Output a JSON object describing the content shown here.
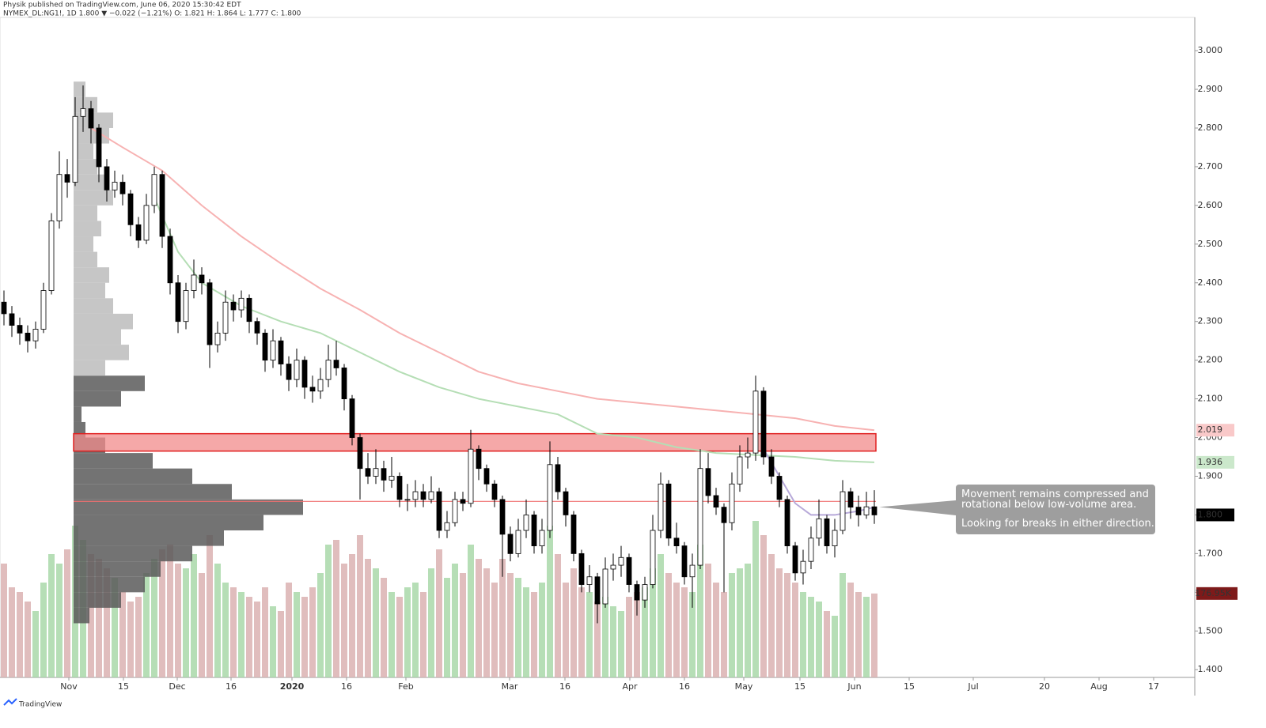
{
  "header": {
    "publisher": "Physik published on TradingView.com, June 06, 2020 15:30:42 EDT",
    "symbol_line": "NYMEX_DL:NG1!, 1D 1.800 ▼ −0.022 (−1.21%) O: 1.821 H: 1.864 L: 1.777 C: 1.800"
  },
  "footer": "TradingView",
  "chart_data": {
    "type": "candlestick",
    "up_color": "#ffffff",
    "down_color": "#000000",
    "outline_color": "#000000",
    "volume_up_color": "#a9d8a9",
    "volume_down_color": "#dbb1b1",
    "ylim": [
      1.38,
      3.086
    ],
    "yticks": [
      {
        "value": 1.4,
        "label": "1.400"
      },
      {
        "value": 1.5,
        "label": "1.500"
      },
      {
        "value": 1.6,
        "label": "1.600"
      },
      {
        "value": 1.7,
        "label": "1.700"
      },
      {
        "value": 1.8,
        "label": "1.800"
      },
      {
        "value": 1.9,
        "label": "1.900"
      },
      {
        "value": 2.0,
        "label": "2.000"
      },
      {
        "value": 2.1,
        "label": "2.100"
      },
      {
        "value": 2.2,
        "label": "2.200"
      },
      {
        "value": 2.3,
        "label": "2.300"
      },
      {
        "value": 2.4,
        "label": "2.400"
      },
      {
        "value": 2.5,
        "label": "2.500"
      },
      {
        "value": 2.6,
        "label": "2.600"
      },
      {
        "value": 2.7,
        "label": "2.700"
      },
      {
        "value": 2.8,
        "label": "2.800"
      },
      {
        "value": 2.9,
        "label": "2.900"
      },
      {
        "value": 3.0,
        "label": "3.000"
      }
    ],
    "xlim": [
      -0.5,
      150.5
    ],
    "xticks": [
      {
        "value": 8.2,
        "label": "Nov"
      },
      {
        "value": 15.1,
        "label": "15"
      },
      {
        "value": 21.9,
        "label": "Dec"
      },
      {
        "value": 28.7,
        "label": "16"
      },
      {
        "value": 36.4,
        "label": "2020"
      },
      {
        "value": 43.3,
        "label": "16"
      },
      {
        "value": 50.8,
        "label": "Feb"
      },
      {
        "value": 63.9,
        "label": "Mar"
      },
      {
        "value": 70.9,
        "label": "16"
      },
      {
        "value": 79.1,
        "label": "Apr"
      },
      {
        "value": 86.0,
        "label": "16"
      },
      {
        "value": 93.5,
        "label": "May"
      },
      {
        "value": 100.6,
        "label": "15"
      },
      {
        "value": 107.5,
        "label": "Jun"
      },
      {
        "value": 114.4,
        "label": "15"
      },
      {
        "value": 122.5,
        "label": "Jul"
      },
      {
        "value": 131.5,
        "label": "20"
      },
      {
        "value": 138.4,
        "label": "Aug"
      },
      {
        "value": 145.3,
        "label": "17"
      }
    ],
    "vlim": [
      0,
      500000
    ],
    "ohlc": [
      [
        2.35,
        2.38,
        2.29,
        2.32
      ],
      [
        2.32,
        2.34,
        2.26,
        2.29
      ],
      [
        2.29,
        2.31,
        2.24,
        2.27
      ],
      [
        2.27,
        2.29,
        2.22,
        2.25
      ],
      [
        2.25,
        2.3,
        2.23,
        2.28
      ],
      [
        2.28,
        2.4,
        2.27,
        2.38
      ],
      [
        2.38,
        2.58,
        2.37,
        2.56
      ],
      [
        2.56,
        2.74,
        2.54,
        2.68
      ],
      [
        2.68,
        2.72,
        2.62,
        2.66
      ],
      [
        2.66,
        2.88,
        2.65,
        2.83
      ],
      [
        2.83,
        2.91,
        2.79,
        2.85
      ],
      [
        2.85,
        2.87,
        2.76,
        2.8
      ],
      [
        2.8,
        2.81,
        2.66,
        2.7
      ],
      [
        2.7,
        2.72,
        2.61,
        2.64
      ],
      [
        2.64,
        2.69,
        2.62,
        2.66
      ],
      [
        2.66,
        2.68,
        2.6,
        2.63
      ],
      [
        2.63,
        2.64,
        2.52,
        2.55
      ],
      [
        2.55,
        2.57,
        2.49,
        2.51
      ],
      [
        2.51,
        2.63,
        2.5,
        2.6
      ],
      [
        2.6,
        2.7,
        2.58,
        2.68
      ],
      [
        2.68,
        2.69,
        2.49,
        2.52
      ],
      [
        2.52,
        2.54,
        2.37,
        2.4
      ],
      [
        2.4,
        2.42,
        2.27,
        2.3
      ],
      [
        2.3,
        2.4,
        2.28,
        2.38
      ],
      [
        2.38,
        2.46,
        2.36,
        2.42
      ],
      [
        2.42,
        2.44,
        2.37,
        2.4
      ],
      [
        2.4,
        2.41,
        2.18,
        2.24
      ],
      [
        2.24,
        2.3,
        2.22,
        2.27
      ],
      [
        2.27,
        2.38,
        2.25,
        2.35
      ],
      [
        2.35,
        2.37,
        2.3,
        2.33
      ],
      [
        2.33,
        2.38,
        2.31,
        2.36
      ],
      [
        2.36,
        2.37,
        2.27,
        2.3
      ],
      [
        2.3,
        2.31,
        2.24,
        2.27
      ],
      [
        2.27,
        2.28,
        2.17,
        2.2
      ],
      [
        2.2,
        2.28,
        2.18,
        2.25
      ],
      [
        2.25,
        2.26,
        2.16,
        2.19
      ],
      [
        2.19,
        2.21,
        2.12,
        2.15
      ],
      [
        2.15,
        2.23,
        2.13,
        2.2
      ],
      [
        2.2,
        2.21,
        2.1,
        2.13
      ],
      [
        2.13,
        2.16,
        2.09,
        2.12
      ],
      [
        2.12,
        2.18,
        2.1,
        2.15
      ],
      [
        2.15,
        2.24,
        2.13,
        2.2
      ],
      [
        2.2,
        2.25,
        2.16,
        2.18
      ],
      [
        2.18,
        2.19,
        2.07,
        2.1
      ],
      [
        2.1,
        2.11,
        1.98,
        2.0
      ],
      [
        2.0,
        2.01,
        1.84,
        1.92
      ],
      [
        1.92,
        1.96,
        1.88,
        1.9
      ],
      [
        1.9,
        1.97,
        1.88,
        1.92
      ],
      [
        1.92,
        1.94,
        1.86,
        1.89
      ],
      [
        1.89,
        1.95,
        1.87,
        1.9
      ],
      [
        1.9,
        1.91,
        1.82,
        1.84
      ],
      [
        1.84,
        1.88,
        1.81,
        1.84
      ],
      [
        1.84,
        1.89,
        1.82,
        1.86
      ],
      [
        1.86,
        1.88,
        1.82,
        1.84
      ],
      [
        1.84,
        1.9,
        1.83,
        1.86
      ],
      [
        1.86,
        1.87,
        1.74,
        1.76
      ],
      [
        1.76,
        1.81,
        1.74,
        1.78
      ],
      [
        1.78,
        1.86,
        1.77,
        1.84
      ],
      [
        1.84,
        1.86,
        1.81,
        1.83
      ],
      [
        1.83,
        2.02,
        1.82,
        1.97
      ],
      [
        1.97,
        1.98,
        1.89,
        1.92
      ],
      [
        1.92,
        1.93,
        1.86,
        1.88
      ],
      [
        1.88,
        1.89,
        1.82,
        1.84
      ],
      [
        1.84,
        1.85,
        1.64,
        1.75
      ],
      [
        1.75,
        1.77,
        1.68,
        1.7
      ],
      [
        1.7,
        1.79,
        1.69,
        1.76
      ],
      [
        1.76,
        1.84,
        1.74,
        1.8
      ],
      [
        1.8,
        1.81,
        1.7,
        1.72
      ],
      [
        1.72,
        1.79,
        1.7,
        1.76
      ],
      [
        1.76,
        1.99,
        1.74,
        1.93
      ],
      [
        1.93,
        1.95,
        1.84,
        1.86
      ],
      [
        1.86,
        1.87,
        1.77,
        1.8
      ],
      [
        1.8,
        1.81,
        1.68,
        1.7
      ],
      [
        1.7,
        1.71,
        1.6,
        1.62
      ],
      [
        1.62,
        1.67,
        1.6,
        1.64
      ],
      [
        1.64,
        1.65,
        1.52,
        1.57
      ],
      [
        1.57,
        1.69,
        1.56,
        1.66
      ],
      [
        1.66,
        1.7,
        1.63,
        1.67
      ],
      [
        1.67,
        1.72,
        1.64,
        1.69
      ],
      [
        1.69,
        1.7,
        1.6,
        1.62
      ],
      [
        1.62,
        1.63,
        1.54,
        1.58
      ],
      [
        1.58,
        1.64,
        1.56,
        1.62
      ],
      [
        1.62,
        1.8,
        1.61,
        1.76
      ],
      [
        1.76,
        1.91,
        1.74,
        1.88
      ],
      [
        1.88,
        1.89,
        1.72,
        1.74
      ],
      [
        1.74,
        1.78,
        1.7,
        1.72
      ],
      [
        1.72,
        1.73,
        1.62,
        1.64
      ],
      [
        1.64,
        1.7,
        1.56,
        1.67
      ],
      [
        1.67,
        1.97,
        1.66,
        1.92
      ],
      [
        1.92,
        1.96,
        1.83,
        1.85
      ],
      [
        1.85,
        1.87,
        1.8,
        1.82
      ],
      [
        1.82,
        1.83,
        1.6,
        1.78
      ],
      [
        1.78,
        1.91,
        1.76,
        1.88
      ],
      [
        1.88,
        1.98,
        1.86,
        1.95
      ],
      [
        1.95,
        2.0,
        1.92,
        1.96
      ],
      [
        1.96,
        2.16,
        1.94,
        2.12
      ],
      [
        2.12,
        2.13,
        1.93,
        1.95
      ],
      [
        1.95,
        1.97,
        1.88,
        1.9
      ],
      [
        1.9,
        1.91,
        1.82,
        1.84
      ],
      [
        1.84,
        1.85,
        1.7,
        1.72
      ],
      [
        1.72,
        1.73,
        1.63,
        1.65
      ],
      [
        1.65,
        1.71,
        1.62,
        1.68
      ],
      [
        1.68,
        1.77,
        1.66,
        1.74
      ],
      [
        1.74,
        1.84,
        1.72,
        1.79
      ],
      [
        1.79,
        1.8,
        1.7,
        1.72
      ],
      [
        1.72,
        1.79,
        1.69,
        1.76
      ],
      [
        1.76,
        1.89,
        1.75,
        1.86
      ],
      [
        1.86,
        1.87,
        1.79,
        1.82
      ],
      [
        1.82,
        1.85,
        1.77,
        1.8
      ],
      [
        1.8,
        1.86,
        1.79,
        1.821
      ],
      [
        1.821,
        1.864,
        1.777,
        1.8
      ]
    ],
    "volume": [
      240000,
      190000,
      180000,
      160000,
      140000,
      200000,
      260000,
      240000,
      270000,
      320000,
      290000,
      260000,
      250000,
      230000,
      210000,
      180000,
      160000,
      170000,
      220000,
      250000,
      270000,
      280000,
      240000,
      230000,
      260000,
      220000,
      300000,
      240000,
      200000,
      190000,
      180000,
      170000,
      160000,
      190000,
      150000,
      140000,
      200000,
      180000,
      170000,
      190000,
      220000,
      280000,
      290000,
      240000,
      260000,
      300000,
      250000,
      230000,
      210000,
      180000,
      170000,
      190000,
      200000,
      180000,
      230000,
      270000,
      210000,
      240000,
      220000,
      280000,
      250000,
      230000,
      200000,
      250000,
      220000,
      210000,
      190000,
      180000,
      200000,
      320000,
      260000,
      200000,
      230000,
      190000,
      180000,
      160000,
      170000,
      150000,
      140000,
      170000,
      180000,
      190000,
      230000,
      260000,
      220000,
      200000,
      190000,
      180000,
      280000,
      240000,
      200000,
      180000,
      220000,
      230000,
      240000,
      330000,
      300000,
      260000,
      230000,
      220000,
      200000,
      180000,
      170000,
      160000,
      140000,
      130000,
      220000,
      200000,
      180000,
      170000,
      176950
    ],
    "lines": [
      {
        "color": "#f7b2b2",
        "x": [
          11,
          15,
          20,
          25,
          30,
          35,
          40,
          45,
          50,
          55,
          60,
          65,
          70,
          75,
          80,
          85,
          90,
          95,
          100,
          105,
          110
        ],
        "values": [
          2.8,
          2.75,
          2.69,
          2.6,
          2.52,
          2.45,
          2.385,
          2.33,
          2.27,
          2.22,
          2.17,
          2.14,
          2.12,
          2.1,
          2.09,
          2.08,
          2.07,
          2.06,
          2.05,
          2.03,
          2.019
        ]
      },
      {
        "color": "#b5deb5",
        "x": [
          19,
          22,
          25,
          30,
          35,
          40,
          45,
          50,
          55,
          60,
          65,
          70,
          75,
          80,
          85,
          90,
          95,
          100,
          105,
          110
        ],
        "values": [
          2.62,
          2.48,
          2.4,
          2.34,
          2.3,
          2.27,
          2.22,
          2.17,
          2.13,
          2.1,
          2.08,
          2.06,
          2.01,
          2.0,
          1.975,
          1.96,
          1.955,
          1.95,
          1.94,
          1.936
        ]
      },
      {
        "color": "#b7a9d9",
        "x": [
          96,
          98,
          100,
          102,
          105,
          108,
          110
        ],
        "values": [
          1.97,
          1.9,
          1.83,
          1.8,
          1.8,
          1.81,
          1.82
        ]
      }
    ],
    "profile_xlim": [
      0,
      300
    ],
    "profile_start": 8.8,
    "profiles": [
      {
        "color": "#5a5a5a",
        "bins": [
          1.52,
          1.56,
          1.6,
          1.64,
          1.68,
          1.72,
          1.76,
          1.8,
          1.84,
          1.88,
          1.92,
          1.96,
          2.0,
          2.04,
          2.08,
          2.12,
          2.16
        ],
        "counts": [
          20,
          60,
          90,
          110,
          150,
          190,
          240,
          290,
          200,
          150,
          100,
          40,
          15,
          10,
          60,
          90
        ]
      },
      {
        "color": "#bcbcbc",
        "bins": [
          2.16,
          2.2,
          2.24,
          2.28,
          2.32,
          2.36,
          2.4,
          2.44,
          2.48,
          2.52,
          2.56,
          2.6,
          2.64,
          2.68,
          2.72,
          2.76,
          2.8,
          2.84,
          2.88,
          2.92
        ],
        "counts": [
          40,
          70,
          60,
          75,
          50,
          40,
          45,
          30,
          25,
          35,
          30,
          50,
          45,
          30,
          25,
          45,
          50,
          30,
          15
        ]
      }
    ],
    "zone": {
      "color": "#f28b8b",
      "edge": "#e02020",
      "y": [
        1.965,
        2.01
      ],
      "x": [
        8.8,
        110.2
      ]
    },
    "hline": {
      "color": "#f07070",
      "value": 1.835,
      "x": [
        8.8,
        110.2
      ]
    },
    "price_badges": [
      {
        "value": 2.019,
        "label": "2.019",
        "bg": "#f9c9c9",
        "fg": "#333333"
      },
      {
        "value": 1.936,
        "label": "1.936",
        "bg": "#cbe8cb",
        "fg": "#333333"
      },
      {
        "value": 1.8,
        "label": "1.800",
        "bg": "#000000",
        "fg": "#ffffff"
      }
    ],
    "volume_badge": {
      "value": 176950,
      "label": "176.95K",
      "bg": "#7e1a1a",
      "fg": "#ffffff"
    },
    "annotation": {
      "lines": [
        "Movement remains compressed and",
        "rotational below low-volume area.",
        "Looking for breaks in either direction."
      ],
      "bg": "#9e9e9e"
    }
  }
}
